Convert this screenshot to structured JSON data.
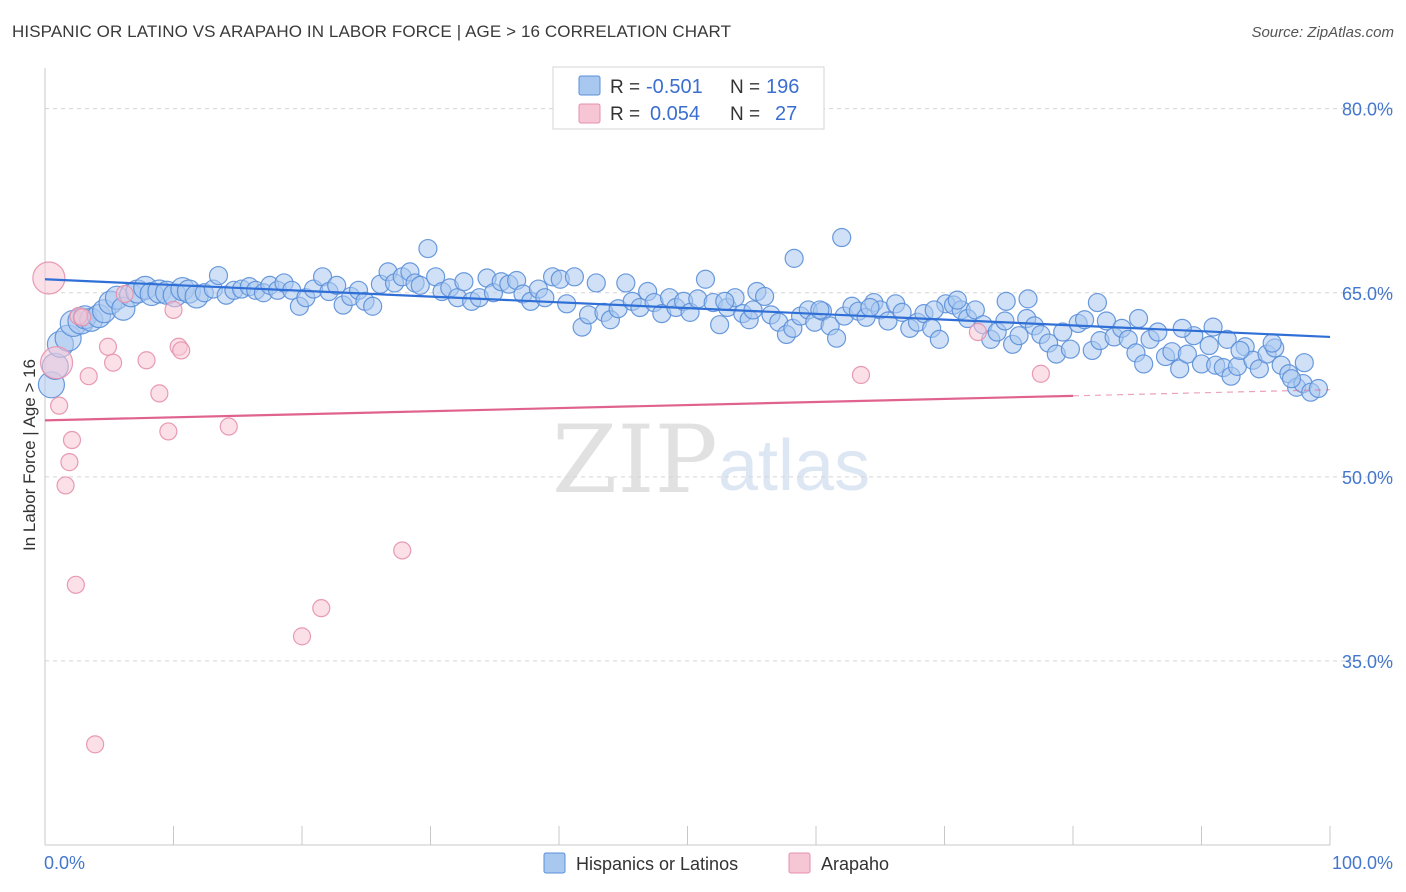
{
  "title": "HISPANIC OR LATINO VS ARAPAHO IN LABOR FORCE | AGE > 16 CORRELATION CHART",
  "source": "Source: ZipAtlas.com",
  "watermark": {
    "zip": "ZIP",
    "atlas": "atlas"
  },
  "legend_top": [
    {
      "r_label": "R =",
      "r_value": "-0.501",
      "n_label": "N =",
      "n_value": "196"
    },
    {
      "r_label": "R =",
      "r_value": "0.054",
      "n_label": "N =",
      "n_value": "27"
    }
  ],
  "legend_bottom": [
    "Hispanics or Latinos",
    "Arapaho"
  ],
  "colors": {
    "blue_fill": "#a9c8f0",
    "blue_stroke": "#5b8fd8",
    "blue_line": "#2f6fd6",
    "pink_fill": "#f7c6d5",
    "pink_stroke": "#e690ac",
    "pink_line": "#e0638f",
    "tick_text": "#4477cc",
    "grid": "#d5d5d5"
  },
  "chart_data": {
    "type": "scatter",
    "title": "HISPANIC OR LATINO VS ARAPAHO IN LABOR FORCE | AGE > 16 CORRELATION CHART",
    "xlabel": "",
    "ylabel": "In Labor Force | Age > 16",
    "xlim": [
      0,
      100
    ],
    "ylim": [
      20,
      82.5
    ],
    "x_tick_labels": [
      "0.0%",
      "100.0%"
    ],
    "y_ticks": [
      35,
      50,
      65,
      80
    ],
    "y_tick_labels": [
      "35.0%",
      "50.0%",
      "65.0%",
      "80.0%"
    ],
    "grid": "horizontal dashed",
    "legend_position": "top-center",
    "series": [
      {
        "name": "Hispanics or Latinos",
        "r": -0.501,
        "n": 196,
        "trend": {
          "x": [
            0,
            100
          ],
          "y": [
            66.1,
            61.4
          ]
        },
        "points": [
          [
            0.5,
            57.5
          ],
          [
            0.8,
            59
          ],
          [
            1.2,
            60.8
          ],
          [
            1.8,
            61.3
          ],
          [
            2.2,
            62.5
          ],
          [
            2.8,
            62.7
          ],
          [
            3.1,
            63
          ],
          [
            3.6,
            62.8
          ],
          [
            4.2,
            63.1
          ],
          [
            4.6,
            63.5
          ],
          [
            5.1,
            64.2
          ],
          [
            5.6,
            64.6
          ],
          [
            6.1,
            63.7
          ],
          [
            6.7,
            64.8
          ],
          [
            7.2,
            65.1
          ],
          [
            7.8,
            65.4
          ],
          [
            8.3,
            64.9
          ],
          [
            8.9,
            65.1
          ],
          [
            9.5,
            65
          ],
          [
            10.1,
            64.8
          ],
          [
            10.7,
            65.3
          ],
          [
            11.2,
            65.1
          ],
          [
            11.8,
            64.7
          ],
          [
            12.4,
            65
          ],
          [
            13.1,
            65.3
          ],
          [
            13.5,
            66.4
          ],
          [
            14.1,
            64.8
          ],
          [
            14.7,
            65.2
          ],
          [
            15.3,
            65.3
          ],
          [
            15.9,
            65.5
          ],
          [
            16.4,
            65.2
          ],
          [
            17,
            65
          ],
          [
            17.5,
            65.6
          ],
          [
            18.1,
            65.2
          ],
          [
            18.6,
            65.8
          ],
          [
            19.2,
            65.2
          ],
          [
            19.8,
            63.9
          ],
          [
            20.3,
            64.6
          ],
          [
            20.9,
            65.3
          ],
          [
            21.6,
            66.3
          ],
          [
            22.1,
            65.1
          ],
          [
            22.7,
            65.6
          ],
          [
            23.2,
            64
          ],
          [
            23.8,
            64.7
          ],
          [
            24.4,
            65.2
          ],
          [
            24.9,
            64.3
          ],
          [
            25.5,
            63.9
          ],
          [
            26.1,
            65.7
          ],
          [
            26.7,
            66.7
          ],
          [
            27.2,
            65.8
          ],
          [
            27.8,
            66.3
          ],
          [
            28.4,
            66.7
          ],
          [
            28.8,
            65.8
          ],
          [
            29.2,
            65.6
          ],
          [
            29.8,
            68.6
          ],
          [
            30.4,
            66.3
          ],
          [
            30.9,
            65.1
          ],
          [
            31.5,
            65.4
          ],
          [
            32.1,
            64.6
          ],
          [
            32.6,
            65.9
          ],
          [
            33.2,
            64.3
          ],
          [
            33.8,
            64.6
          ],
          [
            34.4,
            66.2
          ],
          [
            34.9,
            65
          ],
          [
            35.5,
            65.9
          ],
          [
            36.1,
            65.7
          ],
          [
            36.7,
            66
          ],
          [
            37.2,
            64.9
          ],
          [
            37.8,
            64.3
          ],
          [
            38.4,
            65.3
          ],
          [
            38.9,
            64.6
          ],
          [
            39.5,
            66.3
          ],
          [
            40.1,
            66.1
          ],
          [
            40.6,
            64.1
          ],
          [
            41.2,
            66.3
          ],
          [
            41.8,
            62.2
          ],
          [
            42.3,
            63.2
          ],
          [
            42.9,
            65.8
          ],
          [
            43.5,
            63.4
          ],
          [
            44,
            62.8
          ],
          [
            44.6,
            63.7
          ],
          [
            45.2,
            65.8
          ],
          [
            45.7,
            64.3
          ],
          [
            46.3,
            63.8
          ],
          [
            46.9,
            65.1
          ],
          [
            47.4,
            64.2
          ],
          [
            48,
            63.3
          ],
          [
            48.6,
            64.6
          ],
          [
            49.1,
            63.8
          ],
          [
            49.7,
            64.3
          ],
          [
            50.2,
            63.4
          ],
          [
            50.8,
            64.5
          ],
          [
            51.4,
            66.1
          ],
          [
            52,
            64.2
          ],
          [
            52.5,
            62.4
          ],
          [
            53.1,
            63.8
          ],
          [
            53.7,
            64.6
          ],
          [
            54.3,
            63.3
          ],
          [
            54.8,
            62.8
          ],
          [
            55.4,
            65.1
          ],
          [
            56,
            64.7
          ],
          [
            56.5,
            63.2
          ],
          [
            57.1,
            62.6
          ],
          [
            57.7,
            61.6
          ],
          [
            58.2,
            62.1
          ],
          [
            58.8,
            63.1
          ],
          [
            59.4,
            63.6
          ],
          [
            59.9,
            62.6
          ],
          [
            60.5,
            63.5
          ],
          [
            61.1,
            62.3
          ],
          [
            61.6,
            61.3
          ],
          [
            62.2,
            63.1
          ],
          [
            62.8,
            63.9
          ],
          [
            63.3,
            63.5
          ],
          [
            63.9,
            63
          ],
          [
            64.5,
            64.2
          ],
          [
            65,
            63.6
          ],
          [
            65.6,
            62.7
          ],
          [
            66.2,
            64.1
          ],
          [
            66.7,
            63.4
          ],
          [
            67.3,
            62.1
          ],
          [
            67.9,
            62.6
          ],
          [
            68.4,
            63.3
          ],
          [
            69,
            62.1
          ],
          [
            69.6,
            61.2
          ],
          [
            70.1,
            64.1
          ],
          [
            70.7,
            64
          ],
          [
            71.3,
            63.6
          ],
          [
            71.8,
            62.9
          ],
          [
            72.4,
            63.6
          ],
          [
            73,
            62.4
          ],
          [
            73.6,
            61.2
          ],
          [
            74.1,
            61.8
          ],
          [
            74.7,
            62.7
          ],
          [
            75.3,
            60.8
          ],
          [
            75.8,
            61.5
          ],
          [
            76.4,
            62.9
          ],
          [
            77,
            62.3
          ],
          [
            77.5,
            61.6
          ],
          [
            78.1,
            60.9
          ],
          [
            78.7,
            60
          ],
          [
            79.2,
            61.8
          ],
          [
            79.8,
            60.4
          ],
          [
            80.4,
            62.5
          ],
          [
            80.9,
            62.8
          ],
          [
            81.5,
            60.3
          ],
          [
            82.1,
            61.1
          ],
          [
            82.6,
            62.7
          ],
          [
            83.2,
            61.4
          ],
          [
            83.8,
            62.1
          ],
          [
            84.3,
            61.2
          ],
          [
            84.9,
            60.1
          ],
          [
            85.5,
            59.2
          ],
          [
            86,
            61.2
          ],
          [
            86.6,
            61.8
          ],
          [
            87.2,
            59.8
          ],
          [
            87.7,
            60.2
          ],
          [
            88.3,
            58.8
          ],
          [
            88.9,
            60
          ],
          [
            89.4,
            61.5
          ],
          [
            90,
            59.2
          ],
          [
            90.6,
            60.7
          ],
          [
            91.1,
            59.1
          ],
          [
            91.7,
            58.9
          ],
          [
            92.3,
            58.2
          ],
          [
            92.8,
            59
          ],
          [
            93.4,
            60.6
          ],
          [
            94,
            59.5
          ],
          [
            94.5,
            58.8
          ],
          [
            95.1,
            60
          ],
          [
            95.7,
            60.5
          ],
          [
            96.2,
            59.1
          ],
          [
            96.8,
            58.4
          ],
          [
            97.4,
            57.3
          ],
          [
            97.9,
            57.6
          ],
          [
            98.5,
            56.9
          ],
          [
            99.1,
            57.2
          ],
          [
            62,
            69.5
          ],
          [
            58.3,
            67.8
          ],
          [
            71,
            64.4
          ],
          [
            74.8,
            64.3
          ],
          [
            76.5,
            64.5
          ],
          [
            88.5,
            62.1
          ],
          [
            92,
            61.2
          ],
          [
            95.5,
            60.9
          ],
          [
            98,
            59.3
          ],
          [
            97,
            58
          ],
          [
            93,
            60.3
          ],
          [
            81.9,
            64.2
          ],
          [
            85.1,
            62.9
          ],
          [
            90.9,
            62.2
          ],
          [
            69.2,
            63.6
          ],
          [
            60.3,
            63.6
          ],
          [
            64.2,
            63.8
          ],
          [
            55.1,
            63.6
          ],
          [
            52.9,
            64.3
          ]
        ]
      },
      {
        "name": "Arapaho",
        "r": 0.054,
        "n": 27,
        "trend": {
          "x": [
            0,
            80
          ],
          "y": [
            54.6,
            56.6
          ]
        },
        "trend_dashed": {
          "x": [
            80,
            100
          ],
          "y": [
            56.6,
            57.1
          ]
        },
        "points": [
          [
            0.3,
            66.2
          ],
          [
            0.9,
            59.3
          ],
          [
            1.1,
            55.8
          ],
          [
            1.6,
            49.3
          ],
          [
            1.9,
            51.2
          ],
          [
            2.1,
            53
          ],
          [
            2.4,
            41.2
          ],
          [
            2.6,
            63.1
          ],
          [
            2.9,
            63
          ],
          [
            3.4,
            58.2
          ],
          [
            3.9,
            28.2
          ],
          [
            4.9,
            60.6
          ],
          [
            5.3,
            59.3
          ],
          [
            6.2,
            64.9
          ],
          [
            7.9,
            59.5
          ],
          [
            8.9,
            56.8
          ],
          [
            9.6,
            53.7
          ],
          [
            10,
            63.6
          ],
          [
            10.4,
            60.6
          ],
          [
            10.6,
            60.3
          ],
          [
            14.3,
            54.1
          ],
          [
            20,
            37
          ],
          [
            21.5,
            39.3
          ],
          [
            27.8,
            44
          ],
          [
            72.6,
            61.8
          ],
          [
            63.5,
            58.3
          ],
          [
            77.5,
            58.4
          ]
        ]
      }
    ]
  }
}
